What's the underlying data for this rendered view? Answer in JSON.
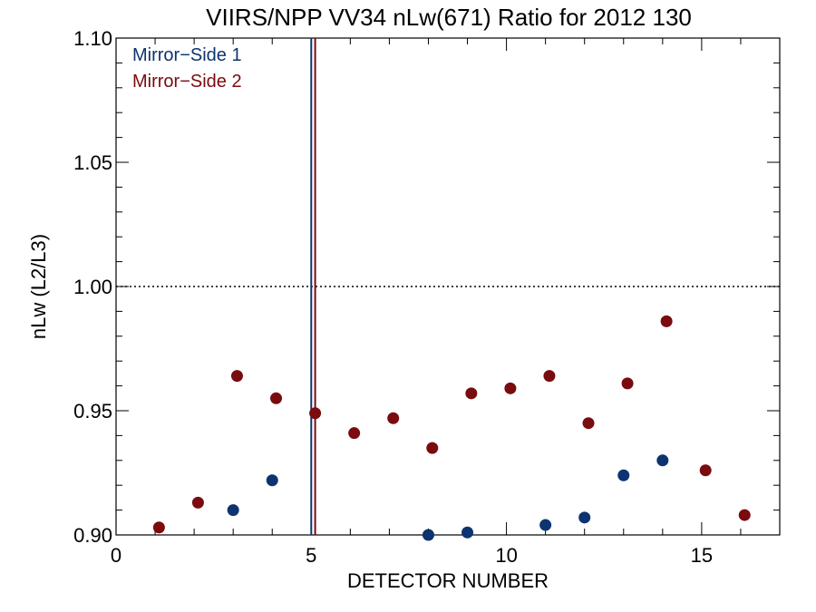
{
  "chart_data": {
    "type": "scatter",
    "title": "VIIRS/NPP VV34 nLw(671) Ratio for 2012 130",
    "xlabel": "DETECTOR NUMBER",
    "ylabel": "nLw (L2/L3)",
    "xlim": [
      0,
      17
    ],
    "ylim": [
      0.9,
      1.1
    ],
    "x_ticks": [
      0,
      5,
      10,
      15
    ],
    "x_tick_labels": [
      "0",
      "5",
      "10",
      "15"
    ],
    "y_ticks": [
      0.9,
      0.95,
      1.0,
      1.05,
      1.1
    ],
    "y_tick_labels": [
      "0.90",
      "0.95",
      "1.00",
      "1.05",
      "1.10"
    ],
    "reference_line": {
      "y": 1.0,
      "style": "dotted"
    },
    "vertical_lines": [
      {
        "x": 5.0,
        "series": "Mirror−Side 1"
      },
      {
        "x": 5.1,
        "series": "Mirror−Side 2"
      }
    ],
    "legend_position": "top-left",
    "series": [
      {
        "name": "Mirror−Side 1",
        "color": "#0d3470",
        "points": [
          {
            "x": 3,
            "y": 0.91
          },
          {
            "x": 4,
            "y": 0.922
          },
          {
            "x": 8,
            "y": 0.9
          },
          {
            "x": 9,
            "y": 0.901
          },
          {
            "x": 11,
            "y": 0.904
          },
          {
            "x": 12,
            "y": 0.907
          },
          {
            "x": 13,
            "y": 0.924
          },
          {
            "x": 14,
            "y": 0.93
          }
        ]
      },
      {
        "name": "Mirror−Side 2",
        "color": "#7a0b0e",
        "points": [
          {
            "x": 1.1,
            "y": 0.903
          },
          {
            "x": 2.1,
            "y": 0.913
          },
          {
            "x": 3.1,
            "y": 0.964
          },
          {
            "x": 4.1,
            "y": 0.955
          },
          {
            "x": 5.1,
            "y": 0.949
          },
          {
            "x": 6.1,
            "y": 0.941
          },
          {
            "x": 7.1,
            "y": 0.947
          },
          {
            "x": 8.1,
            "y": 0.935
          },
          {
            "x": 9.1,
            "y": 0.957
          },
          {
            "x": 10.1,
            "y": 0.959
          },
          {
            "x": 11.1,
            "y": 0.964
          },
          {
            "x": 12.1,
            "y": 0.945
          },
          {
            "x": 13.1,
            "y": 0.961
          },
          {
            "x": 14.1,
            "y": 0.986
          },
          {
            "x": 15.1,
            "y": 0.926
          },
          {
            "x": 16.1,
            "y": 0.908
          }
        ]
      }
    ]
  }
}
